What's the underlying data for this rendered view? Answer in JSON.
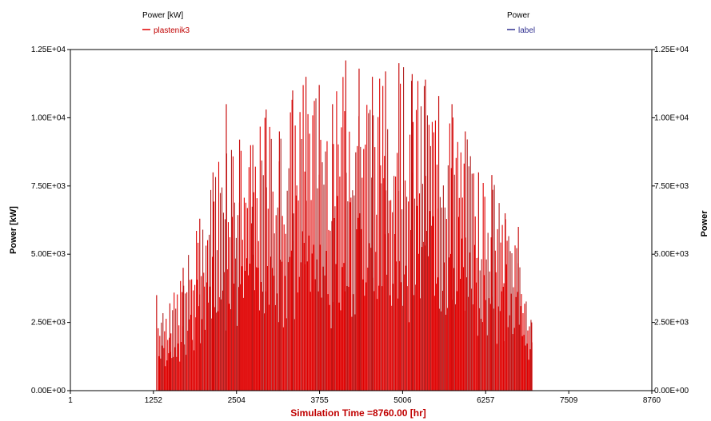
{
  "chart_data": {
    "type": "bar",
    "title": "",
    "colors": {
      "series": "#e00000",
      "series_light": "#b02020",
      "axis": "#000000",
      "right_series": "#303090",
      "x_title": "#c00000"
    },
    "legend": [
      {
        "title": "Power [kW]",
        "entry": "plastenik3"
      },
      {
        "title": "Power",
        "entry": "label"
      }
    ],
    "xlabel": "Simulation Time =8760.00 [hr]",
    "ylabel_left": "Power [kW]",
    "ylabel_right": "Power",
    "x_ticks": [
      "1",
      "1252",
      "2504",
      "3755",
      "5006",
      "6257",
      "7509",
      "8760"
    ],
    "x_tick_values": [
      1,
      1252,
      2504,
      3755,
      5006,
      6257,
      7509,
      8760
    ],
    "y_ticks_left": [
      "0.00E+00",
      "2.50E+03",
      "5.00E+03",
      "7.50E+03",
      "1.00E+04",
      "1.25E+04"
    ],
    "y_ticks_right": [
      "0.00E+00",
      "2.50E+03",
      "5.00E+03",
      "7.50E+03",
      "1.00E+04",
      "1.25E+04"
    ],
    "y_tick_values": [
      0,
      2500,
      5000,
      7500,
      10000,
      12500
    ],
    "xlim": [
      1,
      8760
    ],
    "ylim": [
      0,
      12500
    ],
    "grid": false,
    "series": [
      {
        "name": "plastenik3",
        "x": [
          1300,
          1500,
          1700,
          1950,
          2150,
          2350,
          2550,
          2750,
          2950,
          3150,
          3350,
          3550,
          3750,
          3950,
          4150,
          4350,
          4550,
          4750,
          4950,
          5150,
          5350,
          5550,
          5750,
          5950,
          6150,
          6350,
          6550,
          6750,
          6950
        ],
        "values": [
          3500,
          3200,
          4500,
          6300,
          8000,
          10500,
          9200,
          9000,
          10300,
          9500,
          11000,
          11500,
          11200,
          10500,
          12100,
          11800,
          11500,
          11700,
          12000,
          11600,
          11400,
          10800,
          10500,
          9500,
          8000,
          7900,
          6500,
          6000,
          2500
        ]
      }
    ]
  }
}
